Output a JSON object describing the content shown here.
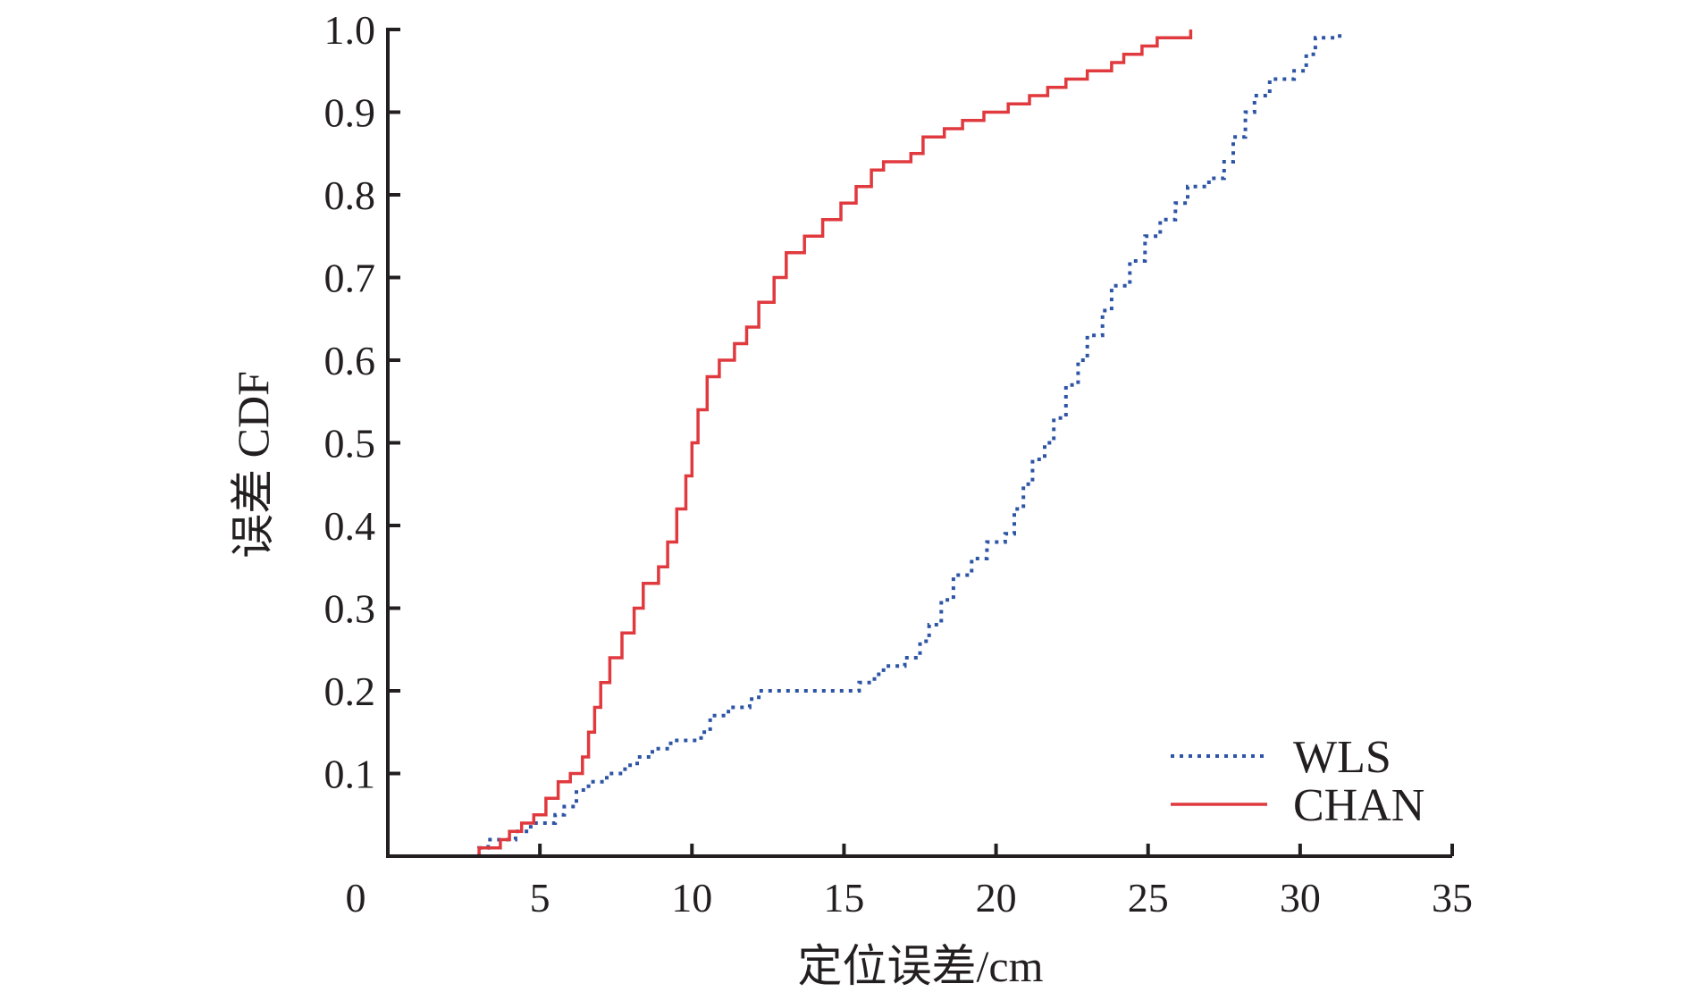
{
  "chart_data": {
    "type": "line",
    "title": "",
    "xlabel": "定位误差/cm",
    "ylabel": "误差 CDF",
    "xlim": [
      0,
      35
    ],
    "ylim": [
      0,
      1.0
    ],
    "x_ticks": [
      "0",
      "5",
      "10",
      "15",
      "20",
      "25",
      "30",
      "35"
    ],
    "y_ticks": [
      "0.1",
      "0.2",
      "0.3",
      "0.4",
      "0.5",
      "0.6",
      "0.7",
      "0.8",
      "0.9",
      "1.0"
    ],
    "grid": false,
    "legend_position": "bottom-right",
    "series": [
      {
        "name": "WLS",
        "color": "#2e55a5",
        "style": "dotted",
        "points": [
          [
            1.2,
            0.0
          ],
          [
            3.0,
            0.01
          ],
          [
            3.3,
            0.02
          ],
          [
            4.2,
            0.03
          ],
          [
            4.7,
            0.04
          ],
          [
            5.5,
            0.05
          ],
          [
            5.8,
            0.06
          ],
          [
            6.2,
            0.08
          ],
          [
            6.6,
            0.09
          ],
          [
            7.2,
            0.1
          ],
          [
            7.8,
            0.11
          ],
          [
            8.2,
            0.12
          ],
          [
            8.7,
            0.13
          ],
          [
            9.3,
            0.14
          ],
          [
            10.3,
            0.15
          ],
          [
            10.6,
            0.17
          ],
          [
            11.2,
            0.18
          ],
          [
            11.9,
            0.19
          ],
          [
            12.2,
            0.2
          ],
          [
            13.8,
            0.2
          ],
          [
            15.5,
            0.21
          ],
          [
            16.0,
            0.22
          ],
          [
            16.3,
            0.23
          ],
          [
            17.0,
            0.24
          ],
          [
            17.5,
            0.26
          ],
          [
            17.8,
            0.28
          ],
          [
            18.2,
            0.31
          ],
          [
            18.6,
            0.34
          ],
          [
            19.2,
            0.36
          ],
          [
            19.7,
            0.38
          ],
          [
            20.3,
            0.39
          ],
          [
            20.6,
            0.42
          ],
          [
            20.9,
            0.45
          ],
          [
            21.2,
            0.48
          ],
          [
            21.6,
            0.5
          ],
          [
            21.9,
            0.53
          ],
          [
            22.3,
            0.57
          ],
          [
            22.7,
            0.6
          ],
          [
            23.0,
            0.63
          ],
          [
            23.5,
            0.66
          ],
          [
            23.8,
            0.69
          ],
          [
            24.4,
            0.72
          ],
          [
            24.9,
            0.75
          ],
          [
            25.4,
            0.77
          ],
          [
            25.9,
            0.79
          ],
          [
            26.3,
            0.81
          ],
          [
            27.0,
            0.82
          ],
          [
            27.5,
            0.84
          ],
          [
            27.8,
            0.87
          ],
          [
            28.2,
            0.9
          ],
          [
            28.5,
            0.92
          ],
          [
            29.0,
            0.94
          ],
          [
            29.8,
            0.95
          ],
          [
            30.2,
            0.97
          ],
          [
            30.5,
            0.99
          ],
          [
            31.3,
            1.0
          ]
        ]
      },
      {
        "name": "CHAN",
        "color": "#e0393e",
        "style": "solid",
        "points": [
          [
            1.2,
            0.0
          ],
          [
            3.0,
            0.01
          ],
          [
            3.7,
            0.02
          ],
          [
            4.0,
            0.03
          ],
          [
            4.4,
            0.04
          ],
          [
            4.8,
            0.05
          ],
          [
            5.2,
            0.07
          ],
          [
            5.6,
            0.09
          ],
          [
            6.0,
            0.1
          ],
          [
            6.4,
            0.12
          ],
          [
            6.6,
            0.15
          ],
          [
            6.8,
            0.18
          ],
          [
            7.0,
            0.21
          ],
          [
            7.3,
            0.24
          ],
          [
            7.7,
            0.27
          ],
          [
            8.1,
            0.3
          ],
          [
            8.4,
            0.33
          ],
          [
            8.9,
            0.35
          ],
          [
            9.2,
            0.38
          ],
          [
            9.5,
            0.42
          ],
          [
            9.8,
            0.46
          ],
          [
            10.0,
            0.5
          ],
          [
            10.2,
            0.54
          ],
          [
            10.5,
            0.58
          ],
          [
            10.9,
            0.6
          ],
          [
            11.4,
            0.62
          ],
          [
            11.8,
            0.64
          ],
          [
            12.2,
            0.67
          ],
          [
            12.7,
            0.7
          ],
          [
            13.1,
            0.73
          ],
          [
            13.7,
            0.75
          ],
          [
            14.3,
            0.77
          ],
          [
            14.9,
            0.79
          ],
          [
            15.4,
            0.81
          ],
          [
            15.9,
            0.83
          ],
          [
            16.3,
            0.84
          ],
          [
            17.2,
            0.85
          ],
          [
            17.6,
            0.87
          ],
          [
            18.3,
            0.88
          ],
          [
            18.9,
            0.89
          ],
          [
            19.6,
            0.9
          ],
          [
            20.4,
            0.91
          ],
          [
            21.1,
            0.92
          ],
          [
            21.7,
            0.93
          ],
          [
            22.3,
            0.94
          ],
          [
            23.0,
            0.95
          ],
          [
            23.8,
            0.96
          ],
          [
            24.2,
            0.97
          ],
          [
            24.8,
            0.98
          ],
          [
            25.3,
            0.99
          ],
          [
            26.4,
            1.0
          ]
        ]
      }
    ]
  }
}
